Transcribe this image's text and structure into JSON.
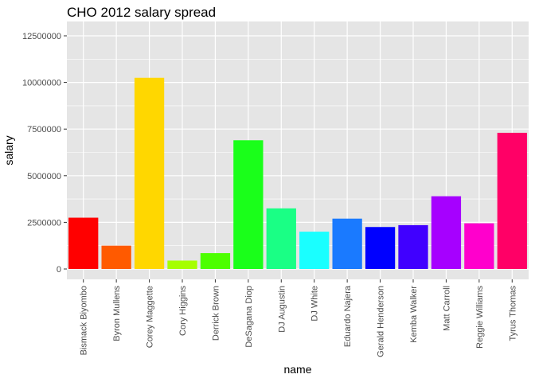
{
  "chart_data": {
    "type": "bar",
    "title": "CHO 2012 salary spread",
    "xlabel": "name",
    "ylabel": "salary",
    "ylim": [
      0,
      12500000
    ],
    "y_ticks": [
      0,
      2500000,
      5000000,
      7500000,
      10000000,
      12500000
    ],
    "y_tick_labels": [
      "0",
      "2500000",
      "5000000",
      "7500000",
      "10000000",
      "12500000"
    ],
    "grid": true,
    "legend": "none",
    "categories": [
      "Bismack Biyombo",
      "Byron Mullens",
      "Corey Maggette",
      "Cory Higgins",
      "Derrick Brown",
      "DeSagana Diop",
      "DJ Augustin",
      "DJ White",
      "Eduardo Najera",
      "Gerald Henderson",
      "Kemba Walker",
      "Matt Carroll",
      "Reggie Williams",
      "Tyrus Thomas"
    ],
    "values": [
      2750000,
      1250000,
      10250000,
      450000,
      850000,
      6900000,
      3250000,
      2000000,
      2700000,
      2250000,
      2350000,
      3900000,
      2450000,
      7300000
    ],
    "colors": [
      "#FF0000",
      "#FF5A00",
      "#FFD700",
      "#A6FF00",
      "#4DFF00",
      "#1AFF1A",
      "#1AFF85",
      "#1AFFFF",
      "#1A7AFF",
      "#0000FF",
      "#4000FF",
      "#A600FF",
      "#FF00CC",
      "#FF0066"
    ],
    "panel_background": "#E5E5E5",
    "grid_color": "#FFFFFF"
  }
}
